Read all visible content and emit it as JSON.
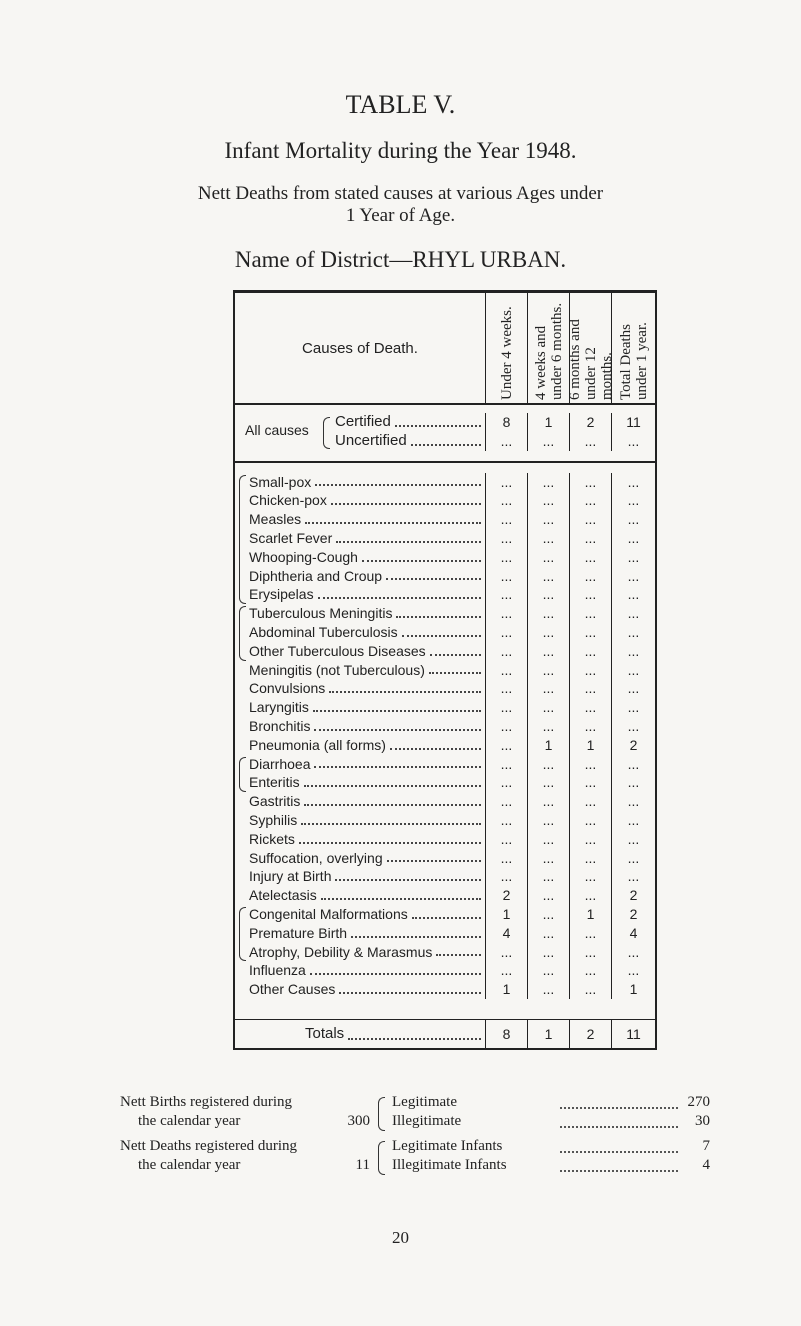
{
  "header": {
    "title": "TABLE V.",
    "subtitle": "Infant Mortality during the Year 1948.",
    "description": [
      "Nett Deaths from stated causes at various Ages under",
      "1 Year of Age."
    ],
    "district": "Name of District—RHYL URBAN."
  },
  "table": {
    "columns": [
      "Causes of Death.",
      "Under 4 weeks.",
      "4 weeks and under 6 months.",
      "6 months and under 12 months.",
      "Total Deaths under 1 year."
    ],
    "all_causes": {
      "label": "All causes",
      "rows": [
        [
          "Certified",
          8,
          1,
          2,
          11
        ],
        [
          "Uncertified",
          "...",
          "...",
          "...",
          "..."
        ]
      ]
    },
    "rows": [
      [
        "Small-pox",
        "...",
        "...",
        "...",
        "..."
      ],
      [
        "Chicken-pox",
        "...",
        "...",
        "...",
        "..."
      ],
      [
        "Measles",
        "...",
        "...",
        "...",
        "..."
      ],
      [
        "Scarlet Fever",
        "...",
        "...",
        "...",
        "..."
      ],
      [
        "Whooping-Cough",
        "...",
        "...",
        "...",
        "..."
      ],
      [
        "Diphtheria and Croup",
        "...",
        "...",
        "...",
        "..."
      ],
      [
        "Erysipelas",
        "...",
        "...",
        "...",
        "..."
      ],
      [
        "Tuberculous Meningitis",
        "...",
        "...",
        "...",
        "..."
      ],
      [
        "Abdominal Tuberculosis",
        "...",
        "...",
        "...",
        "..."
      ],
      [
        "Other Tuberculous Diseases",
        "...",
        "...",
        "...",
        "..."
      ],
      [
        "Meningitis (not Tuberculous)",
        "...",
        "...",
        "...",
        "..."
      ],
      [
        "Convulsions",
        "...",
        "...",
        "...",
        "..."
      ],
      [
        "Laryngitis",
        "...",
        "...",
        "...",
        "..."
      ],
      [
        "Bronchitis",
        "...",
        "...",
        "...",
        "..."
      ],
      [
        "Pneumonia (all forms)",
        "...",
        1,
        1,
        2
      ],
      [
        "Diarrhoea",
        "...",
        "...",
        "...",
        "..."
      ],
      [
        "Enteritis",
        "...",
        "...",
        "...",
        "..."
      ],
      [
        "Gastritis",
        "...",
        "...",
        "...",
        "..."
      ],
      [
        "Syphilis",
        "...",
        "...",
        "...",
        "..."
      ],
      [
        "Rickets",
        "...",
        "...",
        "...",
        "..."
      ],
      [
        "Suffocation, overlying",
        "...",
        "...",
        "...",
        "..."
      ],
      [
        "Injury at Birth",
        "...",
        "...",
        "...",
        "..."
      ],
      [
        "Atelectasis",
        2,
        "...",
        "...",
        2
      ],
      [
        "Congenital Malformations",
        1,
        "...",
        1,
        2
      ],
      [
        "Premature Birth",
        4,
        "...",
        "...",
        4
      ],
      [
        "Atrophy, Debility & Marasmus",
        "...",
        "...",
        "...",
        "..."
      ],
      [
        "Influenza",
        "...",
        "...",
        "...",
        "..."
      ],
      [
        "Other Causes",
        1,
        "...",
        "...",
        1
      ]
    ],
    "totals": [
      "Totals",
      8,
      1,
      2,
      11
    ]
  },
  "footer": {
    "births": {
      "label": [
        "Nett Births registered during",
        "the calendar year"
      ],
      "total": 300,
      "items": [
        [
          "Legitimate",
          270
        ],
        [
          "Illegitimate",
          30
        ]
      ]
    },
    "deaths": {
      "label": [
        "Nett Deaths registered during",
        "the calendar year"
      ],
      "total": 11,
      "items": [
        [
          "Legitimate Infants",
          7
        ],
        [
          "Illegitimate Infants",
          4
        ]
      ]
    },
    "page_number": "20"
  }
}
